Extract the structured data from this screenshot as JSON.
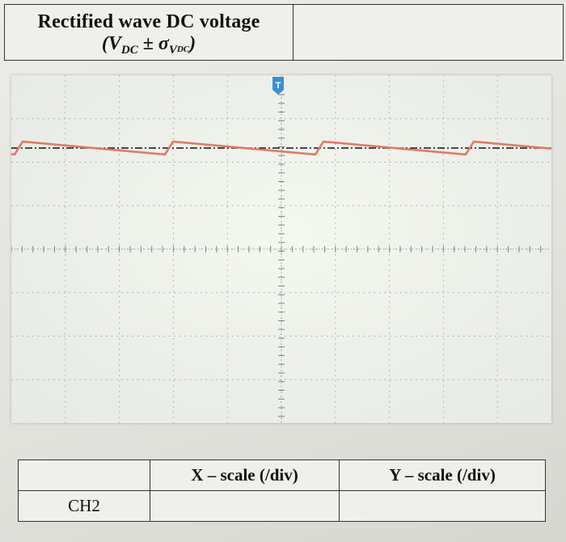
{
  "top_table": {
    "title": "Rectified wave DC voltage",
    "formula_open": "(",
    "formula_v": "V",
    "formula_v_sub": "DC",
    "formula_pm": " ± ",
    "formula_sigma": "σ",
    "formula_sigma_sub": "V",
    "formula_sigma_subsub": "DC",
    "formula_close": ")",
    "value": ""
  },
  "scope": {
    "trigger_marker": "T",
    "trace_color": "#e07a66",
    "reference_line_color": "#111111"
  },
  "bottom_table": {
    "headers": [
      "",
      "X – scale (/div)",
      "Y – scale (/div)"
    ],
    "rows": [
      {
        "channel": "CH2",
        "x_scale": "",
        "y_scale": ""
      }
    ]
  }
}
